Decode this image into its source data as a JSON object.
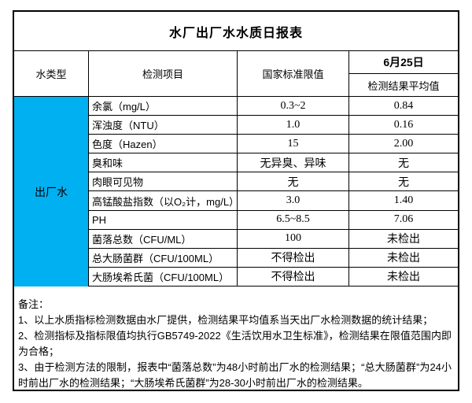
{
  "title": "水厂出厂水水质日报表",
  "colors": {
    "water_type_bg": "#00B0F0",
    "border": "#000000",
    "background": "#FFFFFF",
    "text": "#000000"
  },
  "header": {
    "water_type": "水类型",
    "item": "检测项目",
    "limit": "国家标准限值",
    "date": "6月25日",
    "result_avg": "检测结果平均值"
  },
  "water_type": "出厂水",
  "rows": [
    {
      "item": "余氯（mg/L）",
      "limit": "0.3~2",
      "result": "0.84"
    },
    {
      "item": "浑浊度（NTU）",
      "limit": "1.0",
      "result": "0.16"
    },
    {
      "item": "色度（Hazen）",
      "limit": "15",
      "result": "2.00"
    },
    {
      "item": "臭和味",
      "limit": "无异臭、异味",
      "result": "无"
    },
    {
      "item": "肉眼可见物",
      "limit": "无",
      "result": "无"
    },
    {
      "item": "高锰酸盐指数（以O₂计，mg/L）",
      "limit": "3.0",
      "result": "1.40"
    },
    {
      "item": "PH",
      "limit": "6.5~8.5",
      "result": "7.06"
    },
    {
      "item": "菌落总数（CFU/ML）",
      "limit": "100",
      "result": "未检出"
    },
    {
      "item": "总大肠菌群（CFU/100ML）",
      "limit": "不得检出",
      "result": "未检出"
    },
    {
      "item": "大肠埃希氏菌（CFU/100ML）",
      "limit": "不得检出",
      "result": "未检出"
    }
  ],
  "notes": {
    "heading": "备注：",
    "items": [
      "1、以上水质指标检测数据由水厂提供，检测结果平均值系当天出厂水检测数据的统计结果；",
      "2、检测指标及指标限值均执行GB5749-2022《生活饮用水卫生标准》，检测结果在限值范围内即为合格；",
      "3、由于检测方法的限制，报表中“菌落总数”为48小时前出厂水的检测结果；“总大肠菌群”为24小时前出厂水的检测结果；“大肠埃希氏菌群”为28-30小时前出厂水的检测结果。"
    ]
  }
}
